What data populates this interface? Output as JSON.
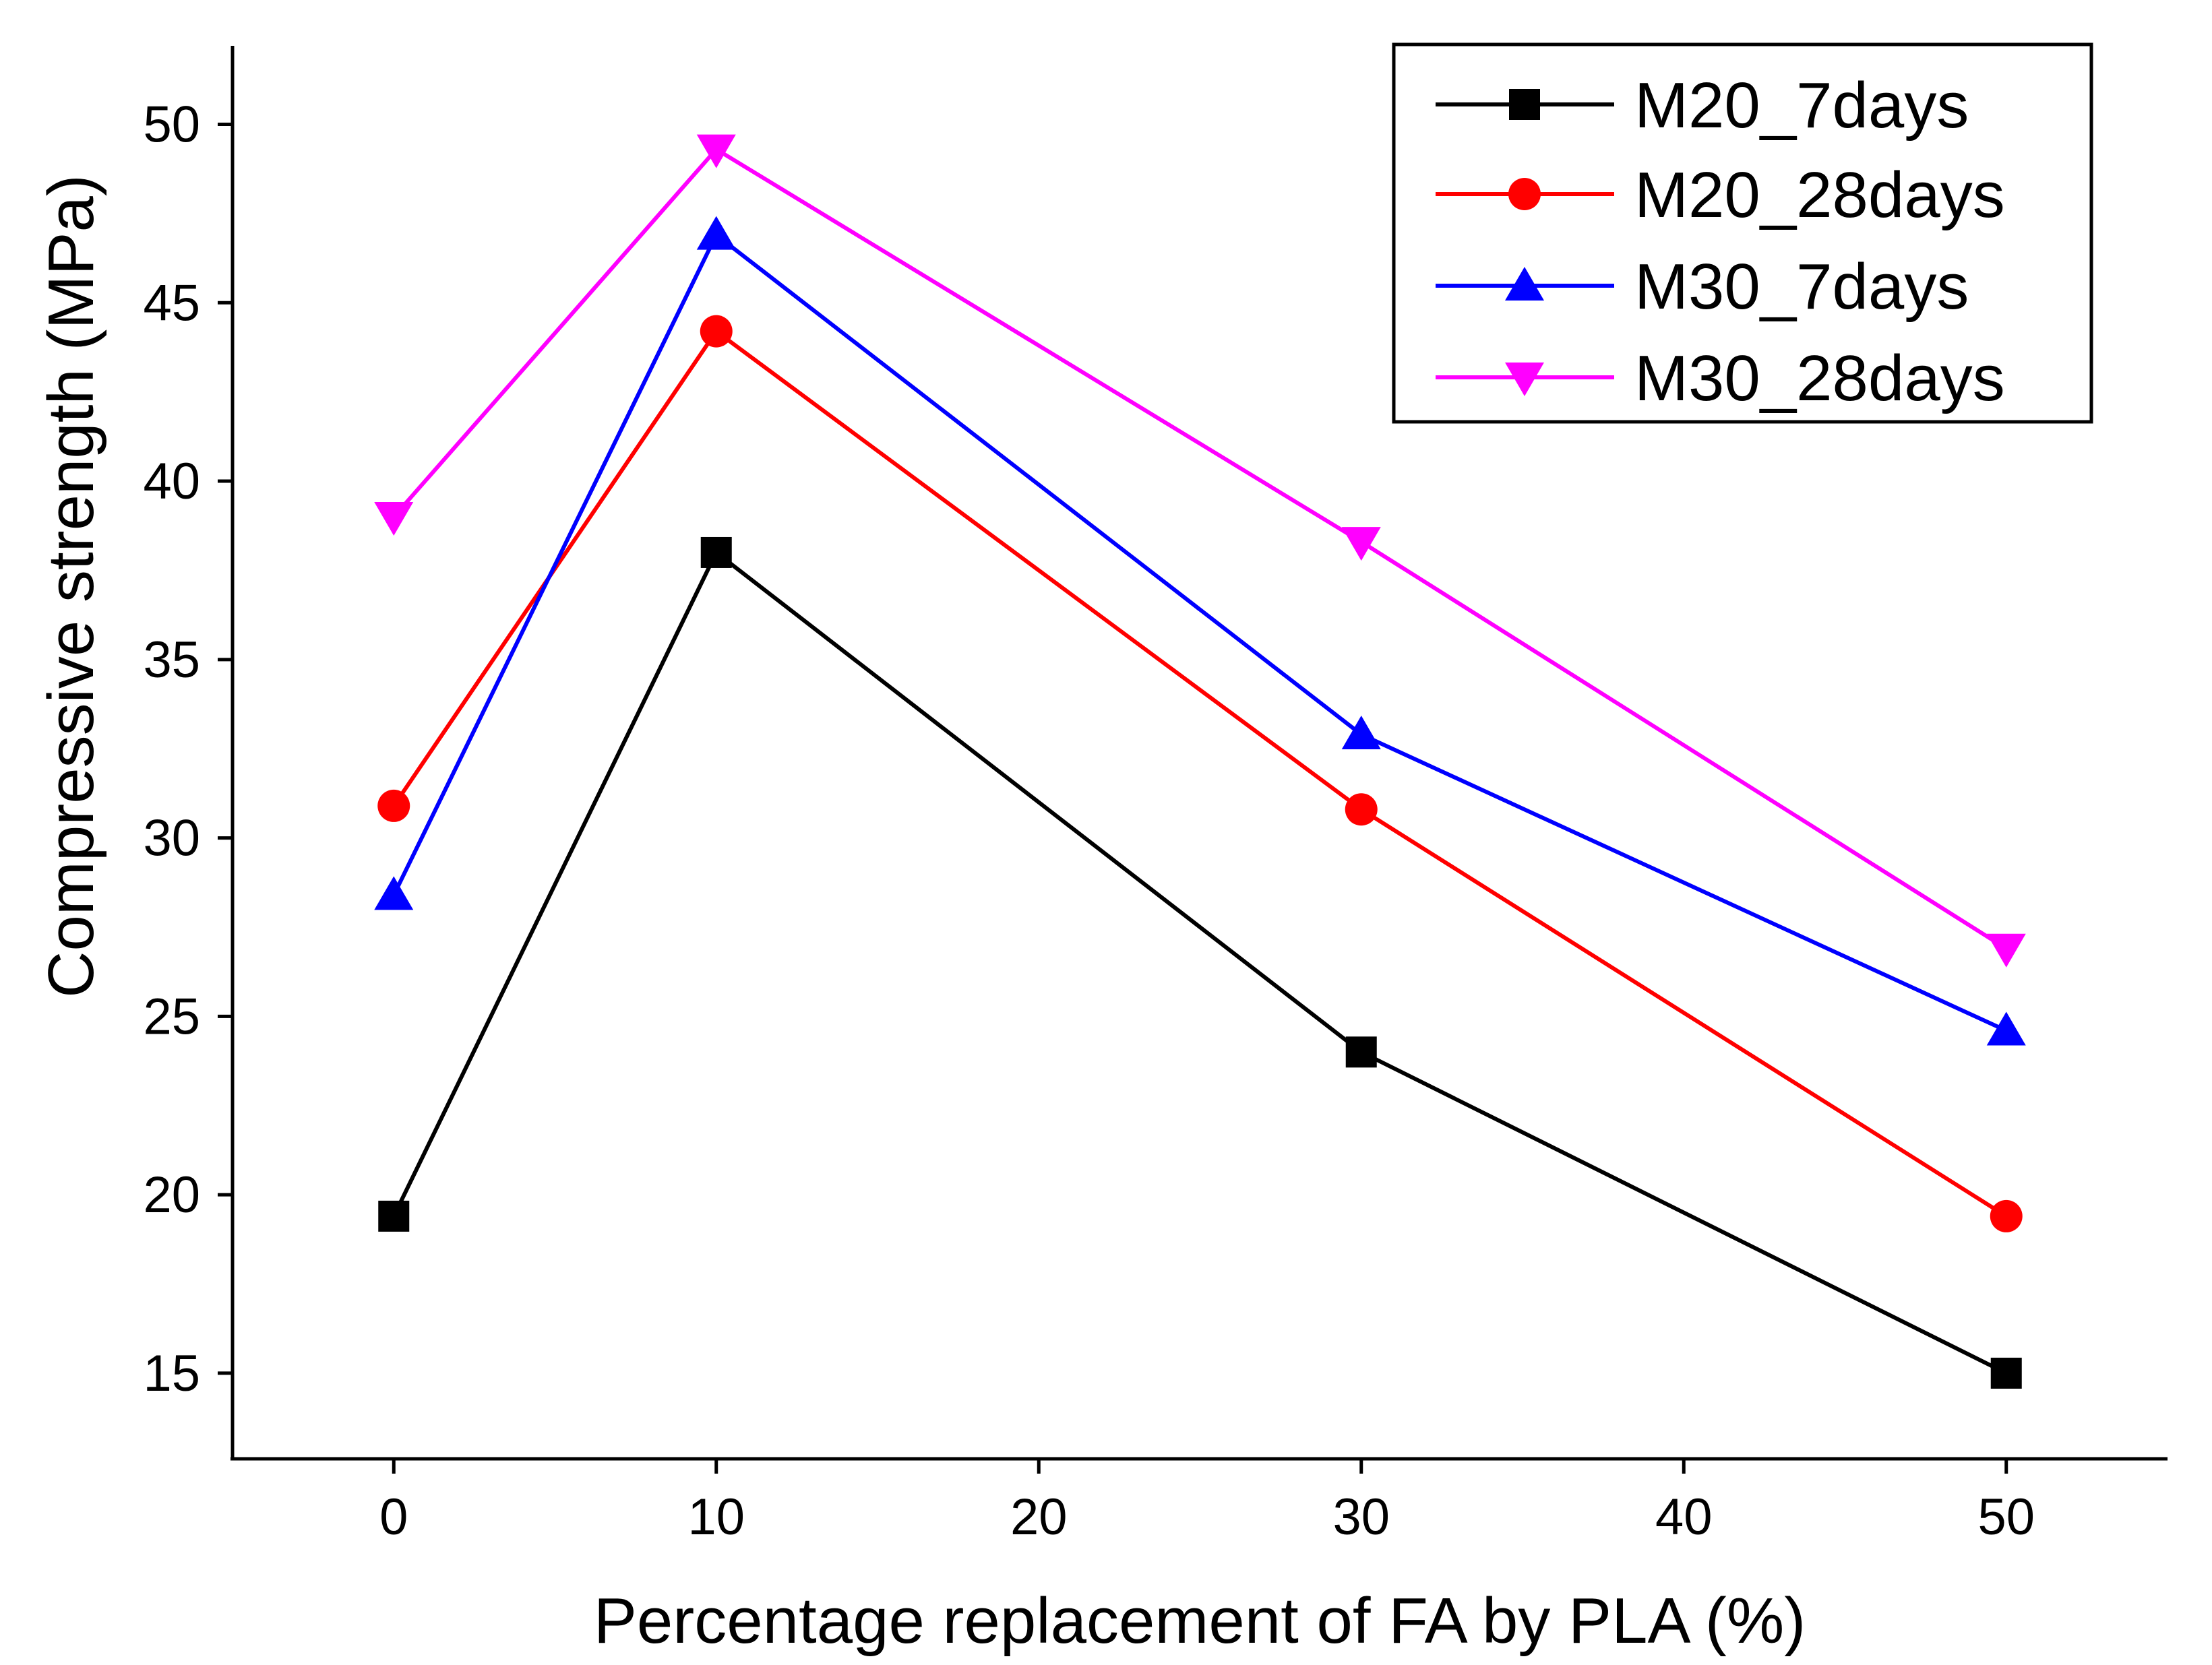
{
  "chart_data": {
    "type": "line",
    "title": "",
    "xlabel": "Percentage replacement of FA by PLA (%)",
    "ylabel": "Compressive strength (MPa)",
    "xlim": [
      -5,
      55
    ],
    "ylim": [
      12.6,
      52.2
    ],
    "xticks": [
      0,
      10,
      20,
      30,
      40,
      50
    ],
    "yticks": [
      15,
      20,
      25,
      30,
      35,
      40,
      45,
      50
    ],
    "x": [
      0,
      10,
      30,
      50
    ],
    "legend_position": "top-right",
    "grid": false,
    "series": [
      {
        "name": "M20_7days",
        "marker": "square",
        "color": "#000000",
        "values": [
          19.4,
          38.0,
          24.0,
          15.0
        ]
      },
      {
        "name": "M20_28days",
        "marker": "circle",
        "color": "#ff0000",
        "values": [
          30.9,
          44.2,
          30.8,
          19.4
        ]
      },
      {
        "name": "M30_7days",
        "marker": "triangle-up",
        "color": "#0000ff",
        "values": [
          28.4,
          46.9,
          32.9,
          24.6
        ]
      },
      {
        "name": "M30_28days",
        "marker": "triangle-down",
        "color": "#ff00ff",
        "values": [
          39.0,
          49.3,
          38.3,
          26.9
        ]
      }
    ]
  }
}
